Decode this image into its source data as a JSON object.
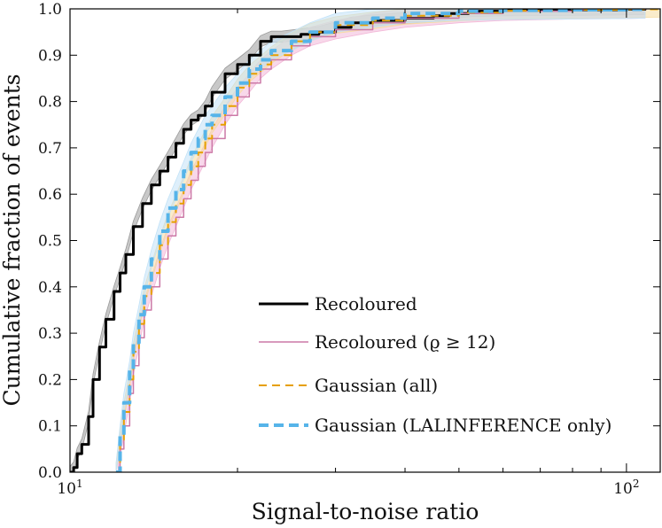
{
  "chart_data": {
    "type": "line",
    "title": "",
    "xlabel": "Signal-to-noise ratio",
    "ylabel": "Cumulative fraction of events",
    "xscale": "log",
    "xlim": [
      10,
      115
    ],
    "ylim": [
      0,
      1
    ],
    "x_ticks": [
      {
        "value": 10,
        "base": "10",
        "exp": "1"
      },
      {
        "value": 100,
        "base": "10",
        "exp": "2"
      }
    ],
    "y_ticks": [
      "0.0",
      "0.1",
      "0.2",
      "0.3",
      "0.4",
      "0.5",
      "0.6",
      "0.7",
      "0.8",
      "0.9",
      "1.0"
    ],
    "legend_position": "lower-right",
    "series": [
      {
        "name": "Recoloured",
        "legend_label": "Recoloured",
        "color": "#000000",
        "style": "solid",
        "band": true,
        "band_color": "#9a9a9a",
        "band_halfwidth": 0.012,
        "x": [
          10.0,
          10.15,
          10.3,
          10.5,
          10.8,
          11.0,
          11.3,
          11.6,
          12.0,
          12.3,
          12.6,
          13.0,
          13.5,
          14.0,
          14.5,
          15.0,
          15.5,
          16.0,
          16.5,
          17.0,
          17.5,
          18.0,
          19.0,
          20.0,
          21.0,
          22.0,
          23.0,
          24.0,
          26.0,
          28.0,
          30.0,
          32.0,
          35.0,
          40.0,
          45.0,
          48.0,
          52.0,
          60.0,
          80.0,
          100.0,
          108.0
        ],
        "y": [
          0.0,
          0.01,
          0.04,
          0.06,
          0.12,
          0.2,
          0.27,
          0.33,
          0.39,
          0.43,
          0.47,
          0.53,
          0.58,
          0.62,
          0.65,
          0.68,
          0.71,
          0.74,
          0.76,
          0.77,
          0.79,
          0.82,
          0.86,
          0.88,
          0.9,
          0.93,
          0.94,
          0.94,
          0.945,
          0.95,
          0.96,
          0.97,
          0.975,
          0.98,
          0.985,
          0.99,
          0.995,
          0.997,
          0.998,
          0.999,
          1.0
        ]
      },
      {
        "name": "Recoloured (rho >= 12)",
        "legend_label": "Recoloured (ϱ ≥ 12)",
        "color": "#cc79a7",
        "style": "solid",
        "band": true,
        "band_color": "#f2b8d8",
        "band_halfwidth": 0.02,
        "x": [
          12.2,
          12.3,
          12.5,
          12.8,
          13.0,
          13.3,
          13.6,
          14.0,
          14.5,
          15.0,
          15.5,
          16.0,
          16.5,
          17.0,
          17.5,
          18.0,
          19.0,
          20.0,
          21.0,
          22.0,
          23.0,
          25.0,
          27.0,
          30.0,
          35.0,
          40.0,
          50.0,
          60.0,
          80.0,
          100.0,
          108.0
        ],
        "y": [
          0.0,
          0.05,
          0.1,
          0.17,
          0.23,
          0.29,
          0.35,
          0.4,
          0.46,
          0.51,
          0.55,
          0.59,
          0.63,
          0.66,
          0.69,
          0.72,
          0.77,
          0.81,
          0.84,
          0.87,
          0.89,
          0.92,
          0.94,
          0.955,
          0.97,
          0.98,
          0.99,
          0.995,
          0.998,
          0.999,
          1.0
        ]
      },
      {
        "name": "Gaussian (all)",
        "legend_label": "Gaussian (all)",
        "color": "#e69f00",
        "style": "dashed",
        "band": true,
        "band_color": "#f6dca0",
        "band_halfwidth": 0.018,
        "x": [
          12.1,
          12.3,
          12.5,
          12.8,
          13.0,
          13.3,
          13.6,
          14.0,
          14.5,
          15.0,
          15.5,
          16.0,
          16.5,
          17.0,
          17.5,
          18.0,
          19.0,
          20.0,
          21.0,
          22.0,
          23.0,
          25.0,
          27.0,
          30.0,
          35.0,
          40.0,
          50.0,
          60.0,
          80.0,
          100.0,
          115.0
        ],
        "y": [
          0.0,
          0.07,
          0.13,
          0.2,
          0.26,
          0.32,
          0.38,
          0.43,
          0.49,
          0.54,
          0.58,
          0.62,
          0.66,
          0.69,
          0.72,
          0.75,
          0.79,
          0.83,
          0.86,
          0.88,
          0.9,
          0.93,
          0.95,
          0.965,
          0.975,
          0.985,
          0.992,
          0.996,
          0.998,
          0.999,
          1.0
        ]
      },
      {
        "name": "Gaussian (LALInference only)",
        "legend_label": "Gaussian (LALINFERENCE only)",
        "color": "#56b4e9",
        "style": "dashed",
        "band": true,
        "band_color": "#c2e2f7",
        "band_halfwidth": 0.02,
        "x": [
          12.1,
          12.3,
          12.5,
          12.8,
          13.0,
          13.3,
          13.6,
          14.0,
          14.5,
          15.0,
          15.5,
          16.0,
          16.5,
          17.0,
          17.5,
          18.0,
          19.0,
          20.0,
          21.0,
          22.0,
          23.0,
          25.0,
          27.0,
          30.0,
          35.0,
          40.0,
          50.0,
          60.0,
          80.0,
          100.0,
          108.0
        ],
        "y": [
          0.0,
          0.08,
          0.15,
          0.22,
          0.28,
          0.34,
          0.4,
          0.46,
          0.52,
          0.57,
          0.61,
          0.65,
          0.69,
          0.72,
          0.75,
          0.77,
          0.81,
          0.84,
          0.87,
          0.89,
          0.91,
          0.93,
          0.95,
          0.97,
          0.98,
          0.99,
          0.995,
          0.997,
          0.998,
          0.999,
          1.0
        ]
      }
    ]
  }
}
